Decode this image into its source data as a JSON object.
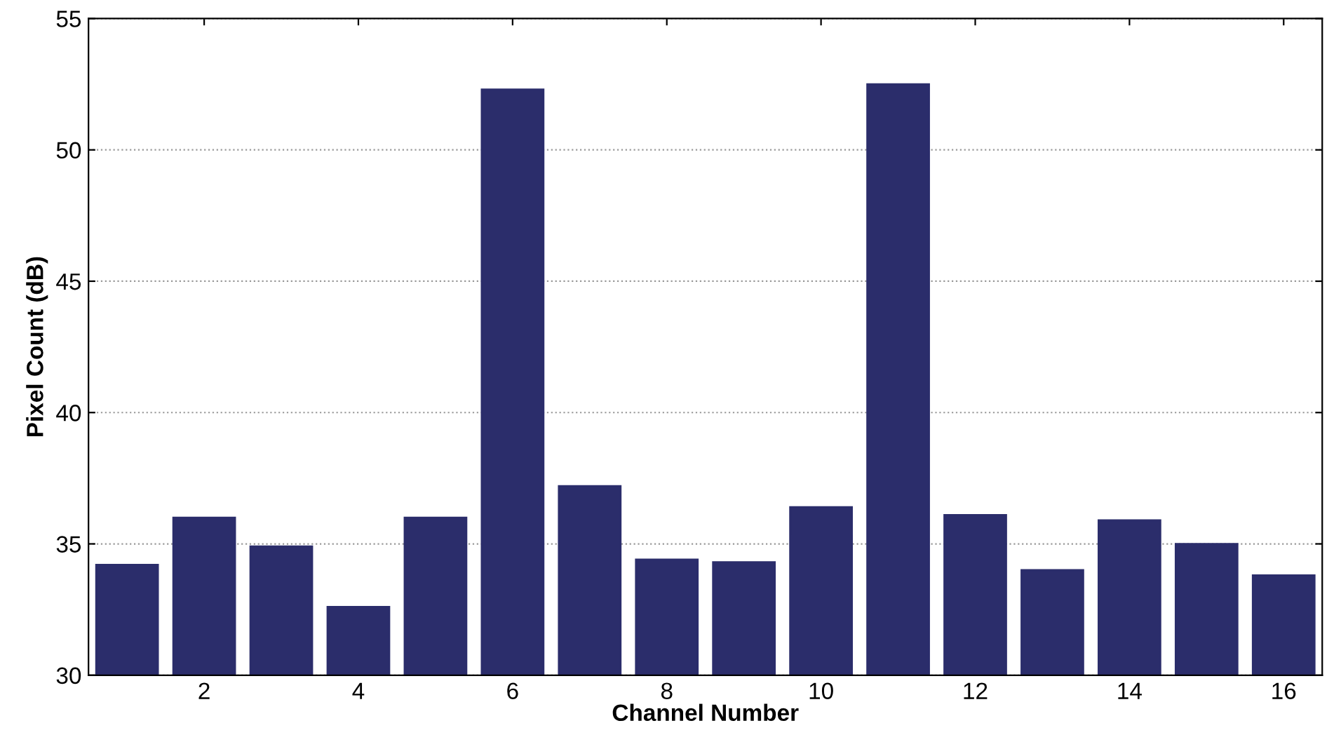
{
  "chart_data": {
    "type": "bar",
    "xlabel": "Channel Number",
    "ylabel": "Pixel Count (dB)",
    "x": [
      1,
      2,
      3,
      4,
      5,
      6,
      7,
      8,
      9,
      10,
      11,
      12,
      13,
      14,
      15,
      16
    ],
    "values": [
      34.2,
      36.0,
      34.9,
      32.6,
      36.0,
      52.3,
      37.2,
      34.4,
      34.3,
      36.4,
      52.5,
      36.1,
      34.0,
      35.9,
      35.0,
      33.8
    ],
    "color": "#2b2d6b",
    "xlim": [
      0.5,
      16.5
    ],
    "xticks": [
      2,
      4,
      6,
      8,
      10,
      12,
      14,
      16
    ],
    "ylim": [
      30,
      55
    ],
    "yticks": [
      30,
      35,
      40,
      45,
      50,
      55
    ],
    "grid": "y",
    "legend": false
  }
}
